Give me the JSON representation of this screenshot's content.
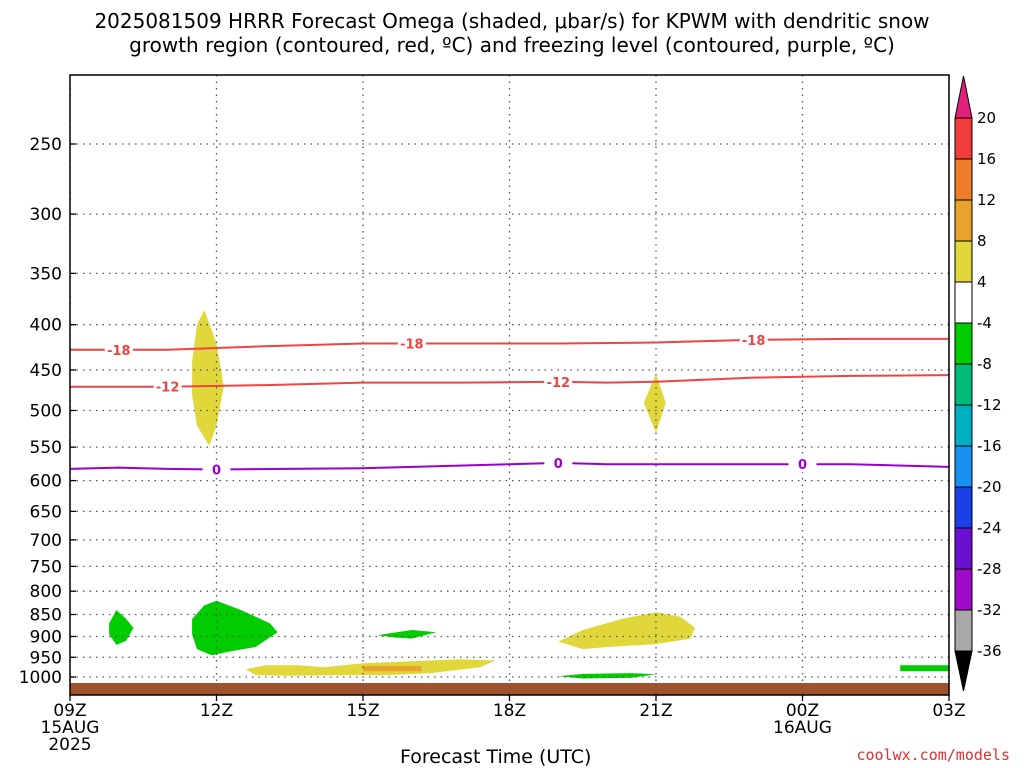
{
  "title_line1": "2025081509 HRRR Forecast Omega (shaded, μbar/s) for KPWM with dendritic snow",
  "title_line2": "growth region (contoured, red, ºC) and freezing level (contoured, purple, ºC)",
  "credit": "coolwx.com/models",
  "chart_data": {
    "type": "contour",
    "xlabel": "Forecast Time (UTC)",
    "ylabel": "",
    "x_range_hours": [
      0,
      18
    ],
    "y_range_hPa": [
      1050,
      150
    ],
    "y_scale": "log-pressure",
    "grid": true,
    "x_ticks": [
      {
        "h": 0,
        "line1": "09Z",
        "line2": "15AUG",
        "line3": "2025"
      },
      {
        "h": 3,
        "line1": "12Z",
        "line2": "",
        "line3": ""
      },
      {
        "h": 6,
        "line1": "15Z",
        "line2": "",
        "line3": ""
      },
      {
        "h": 9,
        "line1": "18Z",
        "line2": "",
        "line3": ""
      },
      {
        "h": 12,
        "line1": "21Z",
        "line2": "",
        "line3": ""
      },
      {
        "h": 15,
        "line1": "00Z",
        "line2": "16AUG",
        "line3": ""
      },
      {
        "h": 18,
        "line1": "03Z",
        "line2": "",
        "line3": ""
      }
    ],
    "y_ticks": [
      250,
      300,
      350,
      400,
      450,
      500,
      550,
      600,
      650,
      700,
      750,
      800,
      850,
      900,
      950,
      1000
    ],
    "isotherms": [
      {
        "label": "-18",
        "color": "#ee4444",
        "points": [
          [
            0,
            427
          ],
          [
            2,
            427
          ],
          [
            4,
            423
          ],
          [
            6,
            420
          ],
          [
            8,
            420
          ],
          [
            10,
            420
          ],
          [
            12,
            419
          ],
          [
            14,
            416
          ],
          [
            16,
            415
          ],
          [
            18,
            415
          ]
        ],
        "label_at": [
          1,
          7,
          14
        ]
      },
      {
        "label": "-12",
        "color": "#ee4444",
        "points": [
          [
            0,
            470
          ],
          [
            2,
            470
          ],
          [
            4,
            468
          ],
          [
            6,
            465
          ],
          [
            8,
            465
          ],
          [
            10,
            464
          ],
          [
            11,
            465
          ],
          [
            12,
            464
          ],
          [
            14,
            459
          ],
          [
            16,
            457
          ],
          [
            18,
            456
          ]
        ],
        "label_at": [
          2,
          10
        ]
      },
      {
        "label": "0",
        "color": "#9900cc",
        "points": [
          [
            0,
            582
          ],
          [
            1,
            580
          ],
          [
            2,
            582
          ],
          [
            3,
            583
          ],
          [
            6,
            581
          ],
          [
            9,
            575
          ],
          [
            10,
            573
          ],
          [
            11,
            575
          ],
          [
            12,
            575
          ],
          [
            15,
            575
          ],
          [
            16,
            575
          ],
          [
            18,
            579
          ]
        ],
        "label_at": [
          3,
          10,
          15
        ]
      }
    ],
    "omega_regions": [
      {
        "color": "#e0d83a",
        "value_bin": "4 to 8",
        "points": [
          [
            2.5,
            440
          ],
          [
            2.6,
            400
          ],
          [
            2.75,
            385
          ],
          [
            3.0,
            420
          ],
          [
            3.15,
            470
          ],
          [
            3.0,
            520
          ],
          [
            2.85,
            548
          ],
          [
            2.6,
            520
          ],
          [
            2.5,
            480
          ]
        ]
      },
      {
        "color": "#e0d83a",
        "value_bin": "4 to 8",
        "points": [
          [
            11.75,
            490
          ],
          [
            12.0,
            455
          ],
          [
            12.2,
            490
          ],
          [
            12.0,
            530
          ],
          [
            11.75,
            490
          ]
        ]
      },
      {
        "color": "#00cc00",
        "value_bin": "-8 to -4",
        "points": [
          [
            0.8,
            870
          ],
          [
            0.95,
            840
          ],
          [
            1.15,
            860
          ],
          [
            1.3,
            880
          ],
          [
            1.15,
            910
          ],
          [
            0.95,
            920
          ],
          [
            0.8,
            895
          ]
        ]
      },
      {
        "color": "#00cc00",
        "value_bin": "-8 to -4",
        "points": [
          [
            2.5,
            860
          ],
          [
            2.75,
            830
          ],
          [
            3.0,
            820
          ],
          [
            3.5,
            840
          ],
          [
            4.1,
            870
          ],
          [
            4.25,
            890
          ],
          [
            3.8,
            925
          ],
          [
            3.3,
            935
          ],
          [
            2.9,
            945
          ],
          [
            2.6,
            930
          ],
          [
            2.5,
            895
          ]
        ]
      },
      {
        "color": "#00cc00",
        "value_bin": "-8 to -4",
        "points": [
          [
            6.3,
            897
          ],
          [
            7.0,
            885
          ],
          [
            7.5,
            890
          ],
          [
            7.0,
            905
          ],
          [
            6.6,
            902
          ]
        ]
      },
      {
        "color": "#00cc00",
        "value_bin": "-8 to -4",
        "points": [
          [
            10.0,
            998
          ],
          [
            10.5,
            992
          ],
          [
            11.5,
            990
          ],
          [
            12.0,
            993
          ],
          [
            11.5,
            1002
          ],
          [
            10.5,
            1004
          ]
        ]
      },
      {
        "color": "#00cc00",
        "value_bin": "-8 to -4",
        "points": [
          [
            17.0,
            970
          ],
          [
            18.0,
            970
          ],
          [
            18.0,
            985
          ],
          [
            17.0,
            985
          ]
        ]
      },
      {
        "color": "#e0d83a",
        "value_bin": "4 to 8",
        "points": [
          [
            10.0,
            912
          ],
          [
            10.5,
            885
          ],
          [
            11.3,
            860
          ],
          [
            12.0,
            845
          ],
          [
            12.5,
            855
          ],
          [
            12.8,
            880
          ],
          [
            12.7,
            905
          ],
          [
            12.0,
            918
          ],
          [
            11.0,
            925
          ],
          [
            10.5,
            930
          ]
        ]
      },
      {
        "color": "#e0d83a",
        "value_bin": "4 to 8",
        "points": [
          [
            3.6,
            980
          ],
          [
            4.0,
            970
          ],
          [
            4.7,
            970
          ],
          [
            5.2,
            975
          ],
          [
            6.0,
            965
          ],
          [
            7.0,
            960
          ],
          [
            8.0,
            955
          ],
          [
            8.7,
            958
          ],
          [
            8.4,
            975
          ],
          [
            7.4,
            990
          ],
          [
            6.5,
            995
          ],
          [
            5.5,
            995
          ],
          [
            4.5,
            997
          ],
          [
            3.8,
            995
          ]
        ]
      },
      {
        "color": "#e8a22e",
        "value_bin": "8 to 12",
        "points": [
          [
            6.0,
            972
          ],
          [
            7.2,
            972
          ],
          [
            7.2,
            985
          ],
          [
            6.0,
            985
          ]
        ]
      }
    ],
    "colorbar": {
      "labels": [
        "20",
        "16",
        "12",
        "8",
        "4",
        "-4",
        "-8",
        "-12",
        "-16",
        "-20",
        "-24",
        "-28",
        "-32",
        "-36"
      ],
      "colors": [
        "#f23c3c",
        "#ef7c2a",
        "#e8a22e",
        "#e0d83a",
        "#ffffff",
        "#00cc00",
        "#00bb77",
        "#00b0c0",
        "#1890f0",
        "#1c40e8",
        "#6a10d0",
        "#a00ac8",
        "#a8a8a8"
      ],
      "top_color": "#e0207a",
      "bottom_color": "#000000"
    },
    "surface_color": "#a0522d"
  }
}
